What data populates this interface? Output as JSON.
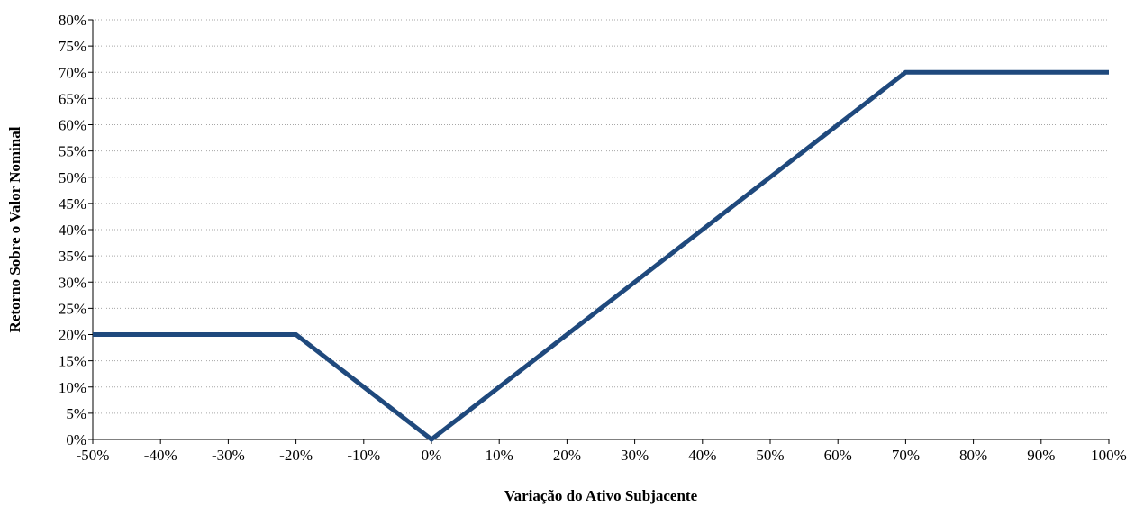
{
  "chart_data": {
    "type": "line",
    "title": "",
    "xlabel": "Variação do Ativo Subjacente",
    "ylabel": "Retorno Sobre o Valor Nominal",
    "xlim": [
      -50,
      100
    ],
    "ylim": [
      0,
      80
    ],
    "x_ticks": [
      -50,
      -40,
      -30,
      -20,
      -10,
      0,
      10,
      20,
      30,
      40,
      50,
      60,
      70,
      80,
      90,
      100
    ],
    "x_tick_labels": [
      "-50%",
      "-40%",
      "-30%",
      "-20%",
      "-10%",
      "0%",
      "10%",
      "20%",
      "30%",
      "40%",
      "50%",
      "60%",
      "70%",
      "80%",
      "90%",
      "100%"
    ],
    "y_ticks": [
      0,
      5,
      10,
      15,
      20,
      25,
      30,
      35,
      40,
      45,
      50,
      55,
      60,
      65,
      70,
      75,
      80
    ],
    "y_tick_labels": [
      "0%",
      "5%",
      "10%",
      "15%",
      "20%",
      "25%",
      "30%",
      "35%",
      "40%",
      "45%",
      "50%",
      "55%",
      "60%",
      "65%",
      "70%",
      "75%",
      "80%"
    ],
    "grid": "horizontal dotted",
    "legend": "none",
    "series": [
      {
        "color": "#1f497d",
        "x": [
          -50,
          -20,
          0,
          70,
          100
        ],
        "y": [
          20,
          20,
          0,
          70,
          70
        ]
      }
    ]
  }
}
